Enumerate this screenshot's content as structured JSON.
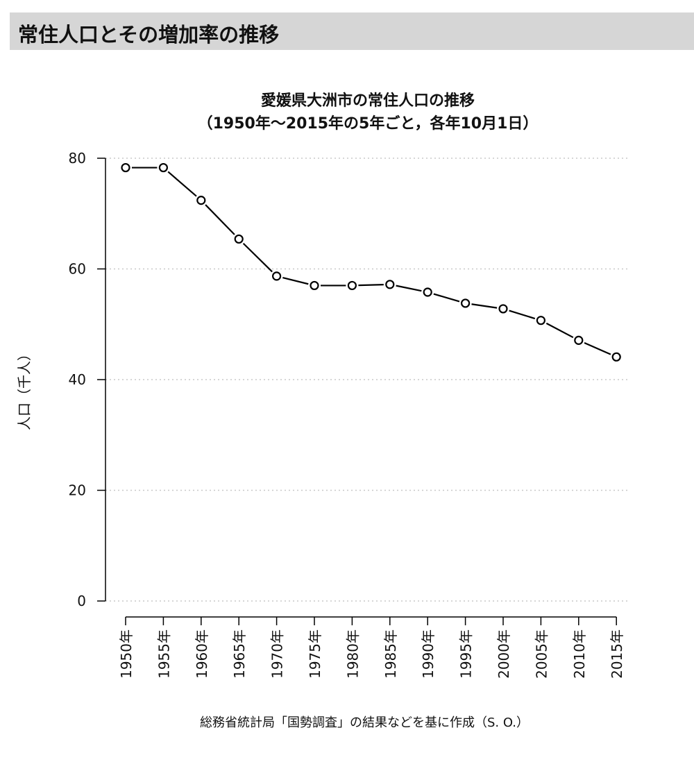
{
  "header": {
    "title": "常住人口とその増加率の推移"
  },
  "chart_data": {
    "type": "line",
    "title_line1": "愛媛県大洲市の常住人口の推移",
    "title_line2": "（1950年～2015年の5年ごと，各年10月1日）",
    "xlabel": "",
    "ylabel": "人口（千人）",
    "categories": [
      "1950年",
      "1955年",
      "1960年",
      "1965年",
      "1970年",
      "1975年",
      "1980年",
      "1985年",
      "1990年",
      "1995年",
      "2000年",
      "2005年",
      "2010年",
      "2015年"
    ],
    "values": [
      78.3,
      78.3,
      72.4,
      65.4,
      58.7,
      57.0,
      57.0,
      57.2,
      55.8,
      53.8,
      52.8,
      50.7,
      47.1,
      44.1
    ],
    "ylim": [
      0,
      80
    ],
    "yticks": [
      0,
      20,
      40,
      60,
      80
    ],
    "ytick_labels": [
      "0",
      "20",
      "40",
      "60",
      "80"
    ],
    "grid": true,
    "marker": "open-circle",
    "line_color": "#000000",
    "grid_color": "#c8c8c8"
  },
  "source_note": "総務省統計局「国勢調査」の結果などを基に作成（S. O.）"
}
